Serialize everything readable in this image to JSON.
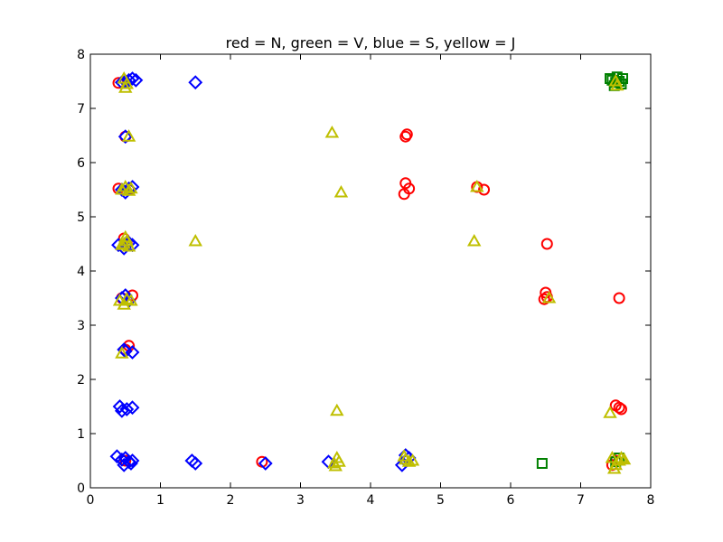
{
  "chart_data": {
    "type": "scatter",
    "title": "red = N, green = V, blue = S, yellow = J",
    "xlabel": "",
    "ylabel": "",
    "xlim": [
      0,
      8
    ],
    "ylim": [
      0,
      8
    ],
    "x_ticks": [
      "0",
      "1",
      "2",
      "3",
      "4",
      "5",
      "6",
      "7",
      "8"
    ],
    "y_ticks": [
      "0",
      "1",
      "2",
      "3",
      "4",
      "5",
      "6",
      "7",
      "8"
    ],
    "grid": false,
    "series": [
      {
        "color": "#ff0000",
        "marker": "circle",
        "points": [
          [
            0.4,
            7.47
          ],
          [
            0.5,
            6.48
          ],
          [
            0.4,
            5.52
          ],
          [
            0.55,
            5.5
          ],
          [
            0.48,
            4.6
          ],
          [
            0.52,
            4.5
          ],
          [
            0.45,
            3.5
          ],
          [
            0.6,
            3.55
          ],
          [
            0.55,
            2.62
          ],
          [
            0.5,
            2.55
          ],
          [
            2.45,
            0.48
          ],
          [
            4.5,
            6.48
          ],
          [
            4.52,
            6.52
          ],
          [
            4.5,
            5.62
          ],
          [
            4.48,
            5.42
          ],
          [
            4.55,
            5.52
          ],
          [
            5.52,
            5.55
          ],
          [
            5.62,
            5.5
          ],
          [
            6.52,
            4.5
          ],
          [
            6.5,
            3.6
          ],
          [
            6.48,
            3.48
          ],
          [
            6.52,
            3.52
          ],
          [
            7.55,
            3.5
          ],
          [
            7.5,
            1.52
          ],
          [
            7.55,
            1.48
          ],
          [
            7.58,
            1.45
          ],
          [
            7.45,
            0.42
          ],
          [
            7.5,
            0.5
          ],
          [
            0.5,
            0.5
          ]
        ]
      },
      {
        "color": "#008000",
        "marker": "square",
        "points": [
          [
            7.45,
            7.52
          ],
          [
            7.5,
            7.48
          ],
          [
            7.55,
            7.5
          ],
          [
            7.58,
            7.45
          ],
          [
            7.42,
            7.55
          ],
          [
            7.6,
            7.55
          ],
          [
            7.48,
            7.42
          ],
          [
            7.52,
            7.58
          ],
          [
            6.45,
            0.45
          ],
          [
            7.55,
            0.55
          ],
          [
            7.5,
            0.48
          ]
        ]
      },
      {
        "color": "#0000ff",
        "marker": "diamond",
        "points": [
          [
            0.5,
            7.5
          ],
          [
            0.55,
            7.52
          ],
          [
            0.6,
            7.55
          ],
          [
            0.65,
            7.52
          ],
          [
            0.45,
            7.48
          ],
          [
            1.5,
            7.48
          ],
          [
            0.5,
            6.48
          ],
          [
            0.5,
            5.45
          ],
          [
            0.55,
            5.52
          ],
          [
            0.6,
            5.55
          ],
          [
            0.45,
            5.5
          ],
          [
            0.4,
            4.48
          ],
          [
            0.5,
            4.5
          ],
          [
            0.6,
            4.48
          ],
          [
            0.48,
            4.42
          ],
          [
            0.55,
            4.52
          ],
          [
            0.45,
            3.5
          ],
          [
            0.5,
            3.55
          ],
          [
            0.55,
            3.45
          ],
          [
            0.5,
            2.52
          ],
          [
            0.6,
            2.5
          ],
          [
            0.48,
            2.55
          ],
          [
            0.42,
            1.5
          ],
          [
            0.45,
            1.42
          ],
          [
            0.52,
            1.45
          ],
          [
            0.6,
            1.48
          ],
          [
            0.38,
            0.58
          ],
          [
            0.45,
            0.52
          ],
          [
            0.5,
            0.55
          ],
          [
            0.55,
            0.48
          ],
          [
            0.58,
            0.45
          ],
          [
            0.48,
            0.42
          ],
          [
            0.6,
            0.5
          ],
          [
            1.45,
            0.5
          ],
          [
            1.5,
            0.45
          ],
          [
            2.5,
            0.45
          ],
          [
            3.4,
            0.48
          ],
          [
            4.45,
            0.42
          ],
          [
            4.5,
            0.5
          ],
          [
            4.55,
            0.55
          ],
          [
            4.5,
            0.6
          ]
        ]
      },
      {
        "color": "#bfbf00",
        "marker": "triangle",
        "points": [
          [
            0.48,
            7.55
          ],
          [
            0.52,
            7.45
          ],
          [
            0.5,
            7.38
          ],
          [
            0.55,
            6.48
          ],
          [
            0.45,
            5.5
          ],
          [
            0.5,
            5.55
          ],
          [
            0.55,
            5.48
          ],
          [
            0.58,
            5.52
          ],
          [
            0.48,
            4.5
          ],
          [
            0.52,
            4.55
          ],
          [
            0.55,
            4.45
          ],
          [
            0.5,
            4.62
          ],
          [
            0.45,
            4.48
          ],
          [
            1.5,
            4.55
          ],
          [
            0.42,
            3.45
          ],
          [
            0.48,
            3.38
          ],
          [
            0.52,
            3.48
          ],
          [
            0.58,
            3.45
          ],
          [
            0.45,
            2.48
          ],
          [
            3.45,
            6.55
          ],
          [
            3.58,
            5.45
          ],
          [
            3.52,
            1.42
          ],
          [
            3.48,
            0.45
          ],
          [
            3.52,
            0.55
          ],
          [
            3.55,
            0.48
          ],
          [
            3.5,
            0.4
          ],
          [
            4.5,
            0.52
          ],
          [
            4.55,
            0.48
          ],
          [
            4.6,
            0.5
          ],
          [
            4.48,
            0.58
          ],
          [
            5.52,
            5.55
          ],
          [
            5.48,
            4.55
          ],
          [
            6.55,
            3.5
          ],
          [
            7.42,
            1.38
          ],
          [
            7.45,
            0.55
          ],
          [
            7.5,
            0.42
          ],
          [
            7.55,
            0.5
          ],
          [
            7.58,
            0.55
          ],
          [
            7.48,
            0.35
          ],
          [
            7.62,
            0.52
          ],
          [
            7.5,
            7.5
          ],
          [
            7.52,
            7.42
          ]
        ]
      }
    ]
  }
}
